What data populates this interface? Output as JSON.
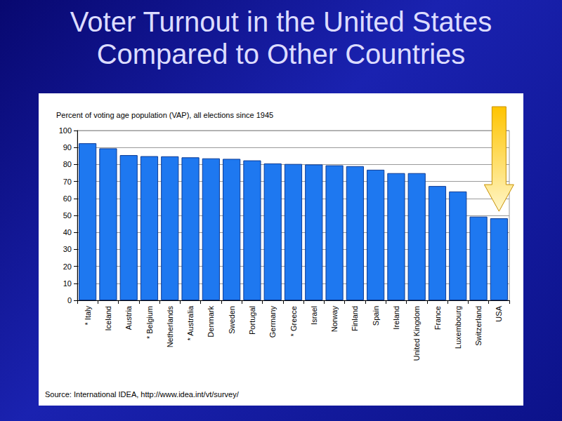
{
  "chart_data": {
    "type": "bar",
    "title": "Voter Turnout in the United States Compared to Other Countries",
    "subtitle": "Percent of voting age population (VAP), all elections since 1945",
    "annotations": [
      "Source: International IDEA, http://www.idea.int/vt/survey/"
    ],
    "categories": [
      "* Italy",
      "Iceland",
      "Austria",
      "* Belgium",
      "Netherlands",
      "* Australia",
      "Denmark",
      "Sweden",
      "Portugal",
      "Germany",
      "* Greece",
      "Israel",
      "Norway",
      "Finland",
      "Spain",
      "Ireland",
      "United Kingdom",
      "France",
      "Luxembourg",
      "Switzerland",
      "USA"
    ],
    "values": [
      92.5,
      89.5,
      85.5,
      84.9,
      84.8,
      84.2,
      83.6,
      83.3,
      82.4,
      80.6,
      80.3,
      80.0,
      79.5,
      79.0,
      76.9,
      74.9,
      74.9,
      67.3,
      64.1,
      49.3,
      48.3
    ],
    "color": "#1e78f0",
    "ylim": [
      0,
      100
    ],
    "yticks": [
      0,
      10,
      20,
      30,
      40,
      50,
      60,
      70,
      80,
      90,
      100
    ],
    "grid": true
  }
}
